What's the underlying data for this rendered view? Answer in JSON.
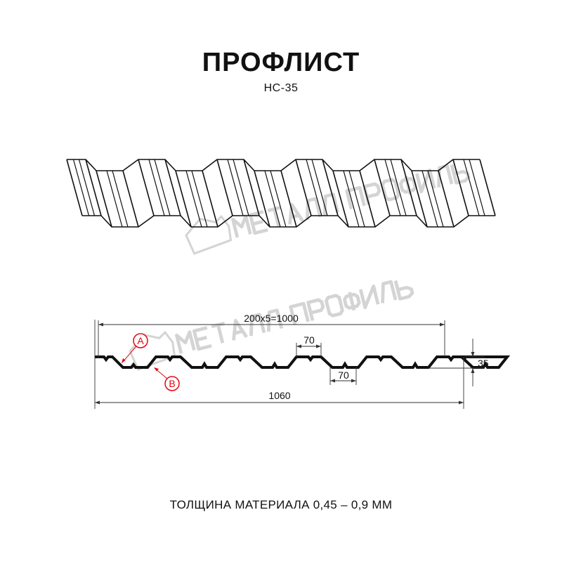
{
  "header": {
    "title": "ПРОФЛИСТ",
    "subtitle": "НС-35"
  },
  "watermark": {
    "logo_text": "МЕТАЛЛ ПРОФИЛЬ",
    "color": "#d4d4d4"
  },
  "dimensions": {
    "working_width": "200x5=1000",
    "total_width": "1060",
    "top_flat": "70",
    "bottom_flat": "70",
    "height": "35"
  },
  "callouts": {
    "a": "A",
    "b": "B",
    "color": "#e30613"
  },
  "footer": {
    "thickness": "ТОЛЩИНА МАТЕРИАЛА 0,45 – 0,9 ММ"
  }
}
